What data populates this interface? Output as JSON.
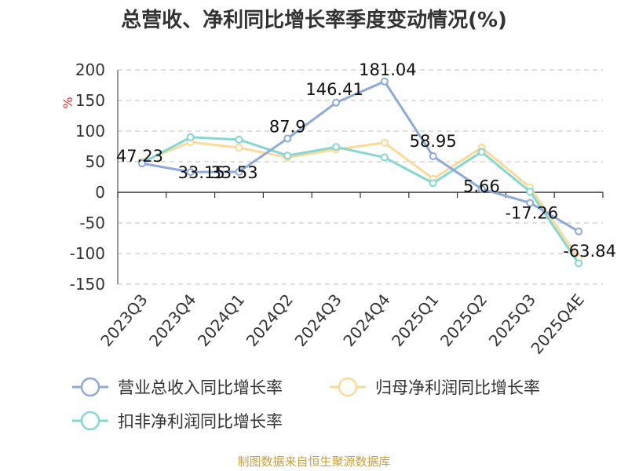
{
  "chart_data": {
    "type": "line",
    "title": "总营收、净利同比增长率季度变动情况(%)",
    "ylabel": "%",
    "categories": [
      "2023Q3",
      "2023Q4",
      "2024Q1",
      "2024Q2",
      "2024Q3",
      "2024Q4",
      "2025Q1",
      "2025Q2",
      "2025Q3",
      "2025Q4E"
    ],
    "ylim": [
      -150,
      200
    ],
    "yticks": [
      200,
      150,
      100,
      50,
      0,
      -50,
      -100,
      -150
    ],
    "grid": true,
    "legend_position": "bottom",
    "series": [
      {
        "name": "营业总收入同比增长率",
        "color": "#8eaad6",
        "values": [
          47.23,
          33.15,
          33.53,
          87.9,
          146.41,
          181.04,
          58.95,
          5.66,
          -17.26,
          -63.84
        ],
        "labels": [
          "47.23",
          "33.15",
          "33.53",
          "87.9",
          "146.41",
          "181.04",
          "58.95",
          "5.66",
          "-17.26",
          "-63.84"
        ]
      },
      {
        "name": "归母净利润同比增长率",
        "color": "#fbd99a",
        "values": [
          50,
          82,
          73,
          57,
          70,
          81,
          22,
          73,
          8,
          -108
        ]
      },
      {
        "name": "扣非净利润同比增长率",
        "color": "#86d6d2",
        "values": [
          48,
          90,
          86,
          60,
          74,
          57,
          15,
          66,
          1,
          -116
        ]
      }
    ],
    "source": "制图数据来自恒生聚源数据库"
  }
}
